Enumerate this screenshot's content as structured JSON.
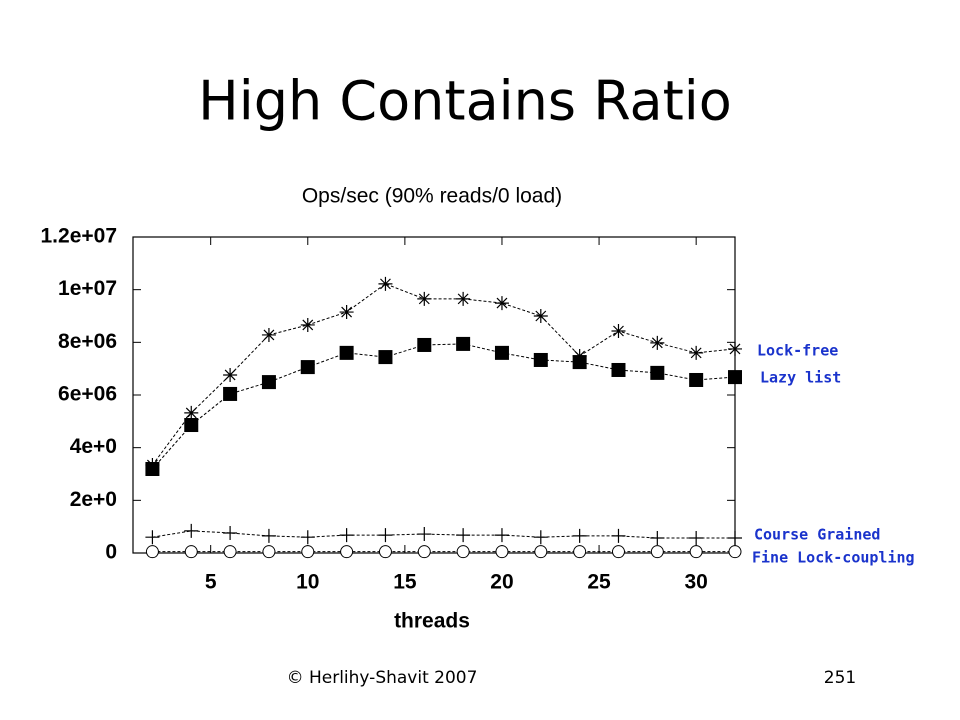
{
  "slide_title": "High Contains Ratio",
  "footer": {
    "copyright": "© Herlihy-Shavit 2007",
    "page": "251"
  },
  "chart_data": {
    "type": "line",
    "title": "Ops/sec (90% reads/0 load)",
    "x_label": "threads",
    "x": [
      2,
      4,
      6,
      8,
      10,
      12,
      14,
      16,
      18,
      20,
      22,
      24,
      26,
      28,
      30,
      32
    ],
    "xlim": [
      1,
      32
    ],
    "xticks": [
      5,
      10,
      15,
      20,
      25,
      30
    ],
    "ylim": [
      0,
      12000000
    ],
    "yticks": [
      0,
      {
        "value": 2000000,
        "label": "2e+0"
      },
      {
        "value": 4000000,
        "label": "4e+0"
      },
      {
        "value": 6000000,
        "label": "6e+06"
      },
      {
        "value": 8000000,
        "label": "8e+06"
      },
      {
        "value": 10000000,
        "label": "1e+07"
      },
      {
        "value": 12000000,
        "label": "1.2e+07"
      }
    ],
    "series": [
      {
        "name": "Lock-free",
        "color": "#000000",
        "marker": "star",
        "values": [
          3340000,
          5320000,
          6760000,
          8280000,
          8660000,
          9150000,
          10220000,
          9650000,
          9650000,
          9490000,
          9000000,
          7480000,
          8430000,
          7980000,
          7600000,
          7750000
        ]
      },
      {
        "name": "Lazy list",
        "color": "#000000",
        "marker": "square",
        "values": [
          3190000,
          4860000,
          6040000,
          6490000,
          7060000,
          7600000,
          7440000,
          7900000,
          7940000,
          7600000,
          7330000,
          7250000,
          6950000,
          6840000,
          6570000,
          6680000
        ]
      },
      {
        "name": "Course Grained",
        "color": "#000000",
        "marker": "plus",
        "values": [
          600000,
          840000,
          760000,
          650000,
          600000,
          680000,
          680000,
          720000,
          680000,
          680000,
          600000,
          650000,
          650000,
          570000,
          570000,
          570000
        ]
      },
      {
        "name": "Fine Lock-coupling",
        "color": "#000000",
        "marker": "circle",
        "values": [
          50000,
          50000,
          50000,
          50000,
          50000,
          50000,
          50000,
          50000,
          50000,
          50000,
          50000,
          50000,
          50000,
          50000,
          50000,
          50000
        ]
      }
    ],
    "legend_color": "#1a33cc"
  }
}
